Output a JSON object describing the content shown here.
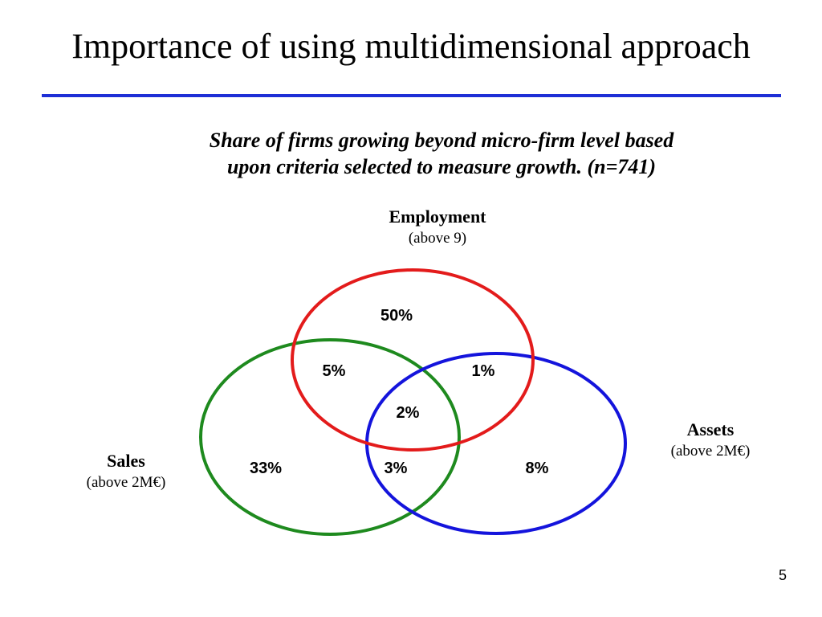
{
  "slide": {
    "title": "Importance of using multidimensional approach",
    "subtitle_line1": "Share of firms growing beyond micro-firm level based",
    "subtitle_line2": "upon criteria selected to measure growth. (n=741)",
    "page_number": "5",
    "rule_color": "#1e2fd6"
  },
  "sets": {
    "employment": {
      "name": "Employment",
      "criterion": "(above 9)",
      "color": "#e31b1b"
    },
    "sales": {
      "name": "Sales",
      "criterion": "(above 2M€)",
      "color": "#1e8a1e"
    },
    "assets": {
      "name": "Assets",
      "criterion": "(above 2M€)",
      "color": "#1414dc"
    }
  },
  "regions": {
    "employment_only": "50%",
    "employment_sales": "5%",
    "employment_assets": "1%",
    "all_three": "2%",
    "sales_only": "33%",
    "sales_assets": "3%",
    "assets_only": "8%"
  }
}
